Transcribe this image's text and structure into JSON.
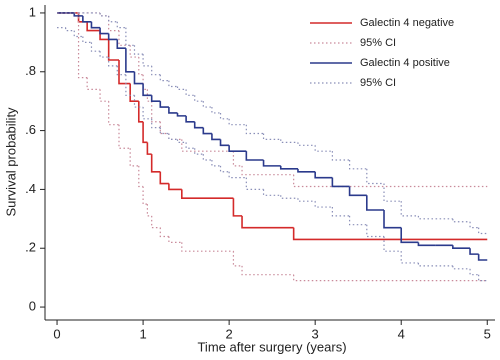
{
  "chart_data": {
    "type": "step",
    "xlabel": "Time after surgery (years)",
    "ylabel": "Survival probability",
    "xlim": [
      -0.14,
      5.09
    ],
    "ylim": [
      -0.044,
      1.027
    ],
    "xticks": [
      0,
      1,
      2,
      3,
      4,
      5
    ],
    "yticks": [
      0,
      {
        "value": 0.2,
        "label": ".2"
      },
      {
        "value": 0.4,
        "label": ".4"
      },
      {
        "value": 0.6,
        "label": ".6"
      },
      {
        "value": 0.8,
        "label": ".8"
      },
      1
    ],
    "legend": "top-right",
    "series": [
      {
        "name": "Galectin 4 negative",
        "color": "#d42a2a",
        "x": [
          0,
          0.25,
          0.35,
          0.5,
          0.6,
          0.72,
          0.85,
          0.95,
          1.0,
          1.05,
          1.1,
          1.2,
          1.3,
          1.45,
          2.05,
          2.15,
          2.75,
          5
        ],
        "values": [
          1,
          0.97,
          0.94,
          0.91,
          0.84,
          0.76,
          0.7,
          0.63,
          0.56,
          0.52,
          0.46,
          0.42,
          0.4,
          0.37,
          0.31,
          0.27,
          0.23,
          0.23
        ]
      },
      {
        "name": "95% CI",
        "color": "#c98a9a",
        "x": [
          0,
          0.25,
          0.35,
          0.5,
          0.6,
          0.72,
          0.85,
          0.95,
          1.0,
          1.05,
          1.1,
          1.2,
          1.3,
          1.45,
          2.05,
          2.15,
          2.75,
          5
        ],
        "lower": [
          1,
          0.78,
          0.74,
          0.7,
          0.62,
          0.54,
          0.48,
          0.41,
          0.35,
          0.31,
          0.27,
          0.24,
          0.22,
          0.19,
          0.14,
          0.11,
          0.09,
          0.09
        ],
        "upper": [
          1,
          1,
          1,
          0.99,
          0.94,
          0.89,
          0.85,
          0.79,
          0.74,
          0.7,
          0.63,
          0.59,
          0.57,
          0.53,
          0.48,
          0.45,
          0.41,
          0.41
        ]
      },
      {
        "name": "Galectin 4 positive",
        "color": "#2b3a8c",
        "x": [
          0,
          0.1,
          0.2,
          0.3,
          0.4,
          0.5,
          0.6,
          0.7,
          0.8,
          0.9,
          1.0,
          1.1,
          1.2,
          1.3,
          1.4,
          1.5,
          1.6,
          1.7,
          1.8,
          1.9,
          2.0,
          2.2,
          2.4,
          2.6,
          2.8,
          3.0,
          3.2,
          3.4,
          3.6,
          3.8,
          4.0,
          4.2,
          4.4,
          4.6,
          4.8,
          4.9,
          5
        ],
        "values": [
          1,
          1,
          0.99,
          0.97,
          0.95,
          0.93,
          0.91,
          0.88,
          0.8,
          0.76,
          0.72,
          0.7,
          0.68,
          0.66,
          0.65,
          0.63,
          0.61,
          0.59,
          0.57,
          0.55,
          0.53,
          0.5,
          0.48,
          0.47,
          0.46,
          0.44,
          0.41,
          0.38,
          0.33,
          0.27,
          0.22,
          0.21,
          0.21,
          0.2,
          0.18,
          0.16,
          0.16
        ]
      },
      {
        "name": "95% CI",
        "color": "#8a8fb8",
        "x": [
          0,
          0.1,
          0.2,
          0.3,
          0.4,
          0.5,
          0.6,
          0.7,
          0.8,
          0.9,
          1.0,
          1.1,
          1.2,
          1.3,
          1.4,
          1.5,
          1.6,
          1.7,
          1.8,
          1.9,
          2.0,
          2.2,
          2.4,
          2.6,
          2.8,
          3.0,
          3.2,
          3.4,
          3.6,
          3.8,
          4.0,
          4.2,
          4.4,
          4.6,
          4.8,
          4.9,
          5
        ],
        "lower": [
          0.95,
          0.94,
          0.92,
          0.9,
          0.87,
          0.85,
          0.82,
          0.79,
          0.72,
          0.68,
          0.64,
          0.61,
          0.59,
          0.57,
          0.56,
          0.54,
          0.52,
          0.5,
          0.48,
          0.46,
          0.44,
          0.4,
          0.38,
          0.37,
          0.36,
          0.34,
          0.31,
          0.28,
          0.24,
          0.19,
          0.15,
          0.14,
          0.14,
          0.13,
          0.11,
          0.09,
          0.09
        ],
        "upper": [
          1,
          1,
          1,
          1,
          1,
          0.99,
          0.97,
          0.95,
          0.89,
          0.86,
          0.82,
          0.79,
          0.77,
          0.75,
          0.74,
          0.72,
          0.7,
          0.68,
          0.66,
          0.64,
          0.62,
          0.59,
          0.57,
          0.56,
          0.55,
          0.53,
          0.5,
          0.47,
          0.42,
          0.36,
          0.31,
          0.3,
          0.3,
          0.29,
          0.27,
          0.25,
          0.25
        ]
      }
    ]
  }
}
